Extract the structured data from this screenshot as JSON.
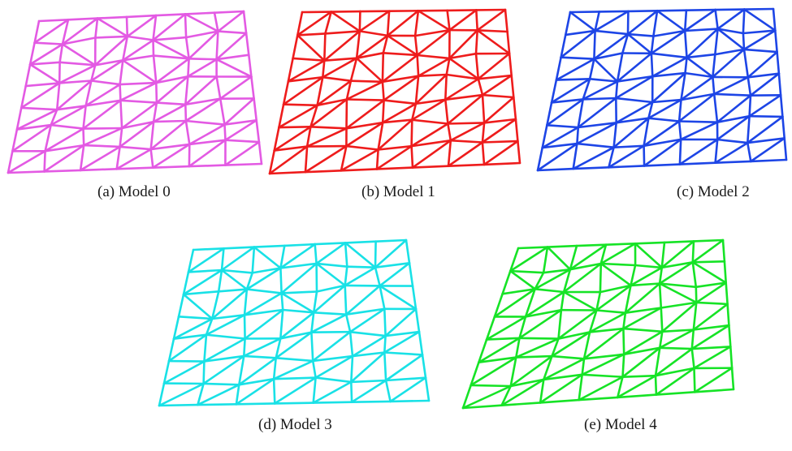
{
  "figure": {
    "panels": [
      {
        "caption": "(a) Model 0",
        "color": "#e35ae3"
      },
      {
        "caption": "(b) Model 1",
        "color": "#ee1c1c"
      },
      {
        "caption": "(c) Model 2",
        "color": "#1d45e6"
      },
      {
        "caption": "(d) Model 3",
        "color": "#19e1e6"
      },
      {
        "caption": "(e) Model 4",
        "color": "#16e326"
      }
    ],
    "mesh": {
      "type": "triangulated-quad-grid",
      "columns": 7,
      "rows": 7
    }
  }
}
